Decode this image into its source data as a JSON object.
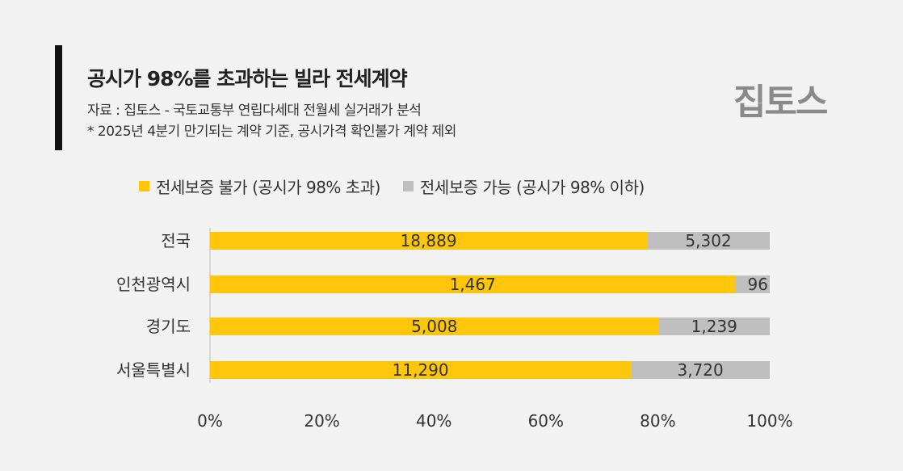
{
  "header": {
    "title": "공시가 98%를 초과하는 빌라 전세계약",
    "source": "자료 : 집토스 - 국토교통부 연립다세대 전월세 실거래가 분석",
    "note": "* 2025년 4분기 만기되는 계약 기준, 공시가격 확인불가 계약 제외",
    "logo": "집토스"
  },
  "chart_data": {
    "type": "bar",
    "orientation": "horizontal",
    "stacked": "percent",
    "categories": [
      "전국",
      "인천광역시",
      "경기도",
      "서울특별시"
    ],
    "series": [
      {
        "name": "전세보증 불가 (공시가 98% 초과)",
        "color": "#FFC60B",
        "values": [
          18889,
          1467,
          5008,
          11290
        ]
      },
      {
        "name": "전세보증 가능 (공시가 98% 이하)",
        "color": "#BFBFBF",
        "values": [
          5302,
          96,
          1239,
          3720
        ]
      }
    ],
    "data_labels": [
      [
        "18,889",
        "1,467",
        "5,008",
        "11,290"
      ],
      [
        "5,302",
        "96",
        "1,239",
        "3,720"
      ]
    ],
    "xticks": [
      "0%",
      "20%",
      "40%",
      "60%",
      "80%",
      "100%"
    ],
    "xlim": [
      0,
      100
    ],
    "legend": "top",
    "grid": false
  }
}
